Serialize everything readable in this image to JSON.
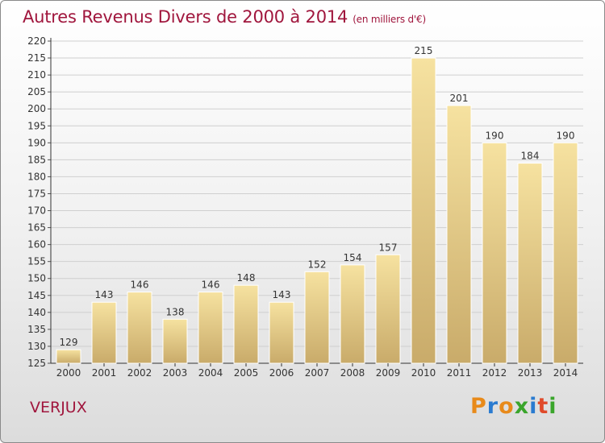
{
  "title": "Autres Revenus Divers de 2000 à 2014",
  "unit_note": "(en milliers d'€)",
  "commune": "VERJUX",
  "logo": {
    "letters": [
      "P",
      "r",
      "o",
      "x",
      "i",
      "t",
      "i"
    ],
    "colors": [
      "#e88a1a",
      "#2a7bd0",
      "#e88a1a",
      "#3aa52b",
      "#2a7bd0",
      "#e04a2a",
      "#3aa52b"
    ]
  },
  "colors": {
    "title": "#a0163d",
    "bar_light": "#f6e2a0",
    "bar_dark": "#c9ab6a",
    "grid": "#cfcfcf"
  },
  "chart_data": {
    "type": "bar",
    "categories": [
      "2000",
      "2001",
      "2002",
      "2003",
      "2004",
      "2005",
      "2006",
      "2007",
      "2008",
      "2009",
      "2010",
      "2011",
      "2012",
      "2013",
      "2014"
    ],
    "values": [
      129,
      143,
      146,
      138,
      146,
      148,
      143,
      152,
      154,
      157,
      215,
      201,
      190,
      184,
      190
    ],
    "ylim": [
      125,
      220
    ],
    "yticks": [
      125,
      130,
      135,
      140,
      145,
      150,
      155,
      160,
      165,
      170,
      175,
      180,
      185,
      190,
      195,
      200,
      205,
      210,
      215,
      220
    ],
    "grid": true,
    "legend": "none"
  }
}
